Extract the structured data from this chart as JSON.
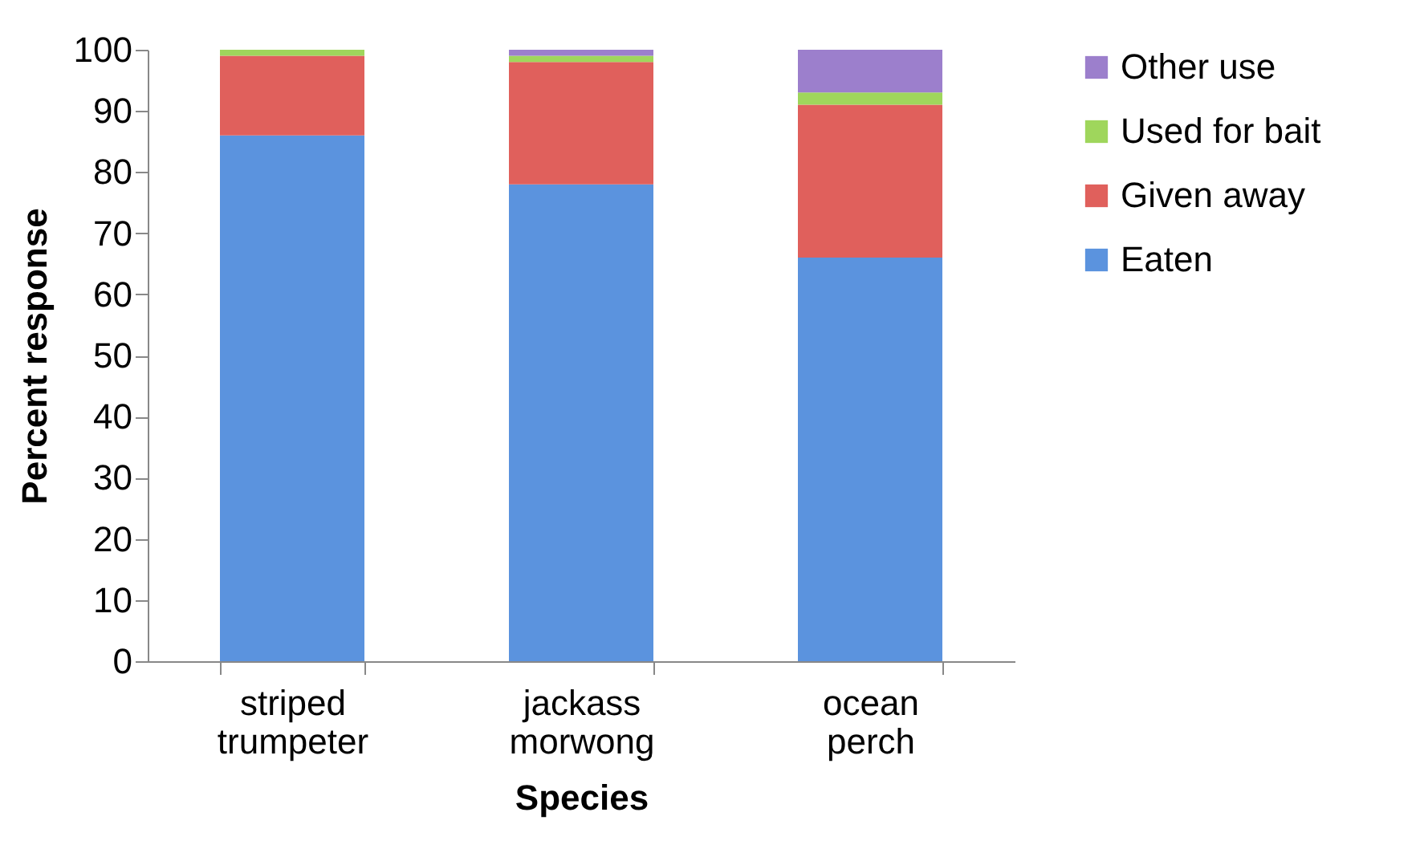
{
  "chart_data": {
    "type": "bar",
    "stacked": true,
    "xlabel": "Species",
    "ylabel": "Percent response",
    "categories": [
      "striped trumpeter",
      "jackass morwong",
      "ocean perch"
    ],
    "series": [
      {
        "name": "Eaten",
        "color": "#5b93de",
        "values": [
          86,
          78,
          66
        ]
      },
      {
        "name": "Given away",
        "color": "#e0605c",
        "values": [
          13,
          20,
          25
        ]
      },
      {
        "name": "Used for bait",
        "color": "#9fd65c",
        "values": [
          1,
          1,
          2
        ]
      },
      {
        "name": "Other use",
        "color": "#9c7fcc",
        "values": [
          0,
          1,
          7
        ]
      }
    ],
    "ylim": [
      0,
      100
    ],
    "yticks": [
      0,
      10,
      20,
      30,
      40,
      50,
      60,
      70,
      80,
      90,
      100
    ],
    "grid": false,
    "legend": "right"
  }
}
